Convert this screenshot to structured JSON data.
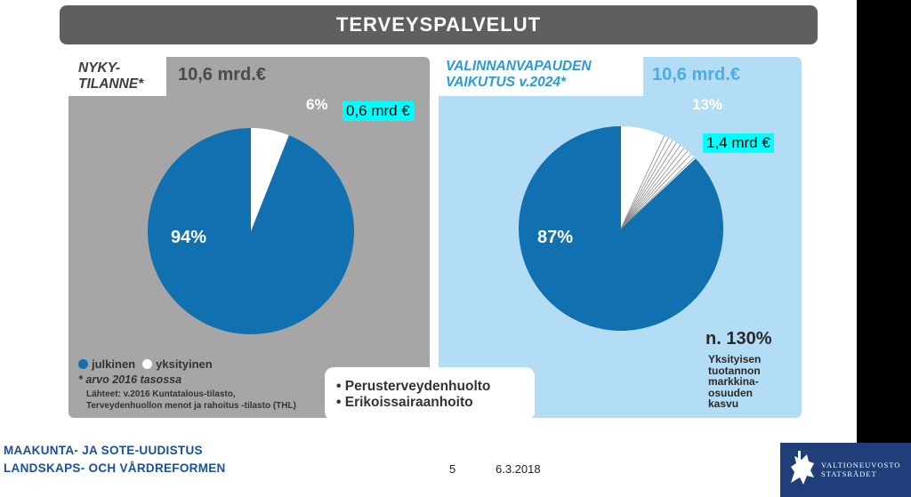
{
  "title": "TERVEYSPALVELUT",
  "left": {
    "heading_line1": "NYKY-",
    "heading_line2": "TILANNE*",
    "total": "10,6 mrd.€",
    "amount_tag": "0,6 mrd €"
  },
  "right": {
    "heading_line1": "VALINNANVAPAUDEN",
    "heading_line2": "VAIKUTUS v.2024*",
    "total": "10,6 mrd.€",
    "amount_tag": "1,4 mrd €",
    "growth_value": "n. 130%",
    "growth_lines": [
      "Yksityisen",
      "tuotannon",
      "markkina-",
      "osuuden",
      "kasvu"
    ]
  },
  "legend": {
    "public": "julkinen",
    "private": "yksityinen",
    "note": "* arvo 2016 tasossa",
    "source_line1": "Lähteet: v.2016 Kuntatalous-tilasto,",
    "source_line2": "Terveydenhuollon menot ja rahoitus -tilasto (THL)"
  },
  "center_items": [
    "Perusterveydenhuolto",
    "Erikoissairaanhoito"
  ],
  "footer": {
    "line1": "MAAKUNTA- JA SOTE-UUDISTUS",
    "line2": "LANDSKAPS- OCH VÅRDREFORMEN",
    "page": "5",
    "date": "6.3.2018",
    "org_line1": "VALTIONEUVOSTO",
    "org_line2": "STATSRÅDET"
  },
  "colors": {
    "public": "#1170b0",
    "private": "#ffffff",
    "tag": "#00ffff"
  },
  "chart_data": [
    {
      "type": "pie",
      "title": "NYKY-TILANNE*",
      "categories": [
        "julkinen",
        "yksityinen"
      ],
      "values": [
        94,
        6
      ],
      "labels": [
        "94%",
        "6%"
      ]
    },
    {
      "type": "pie",
      "title": "VALINNANVAPAUDEN VAIKUTUS v.2024*",
      "categories": [
        "julkinen",
        "yksityinen"
      ],
      "values": [
        87,
        13
      ],
      "labels": [
        "87%",
        "13%"
      ]
    }
  ]
}
